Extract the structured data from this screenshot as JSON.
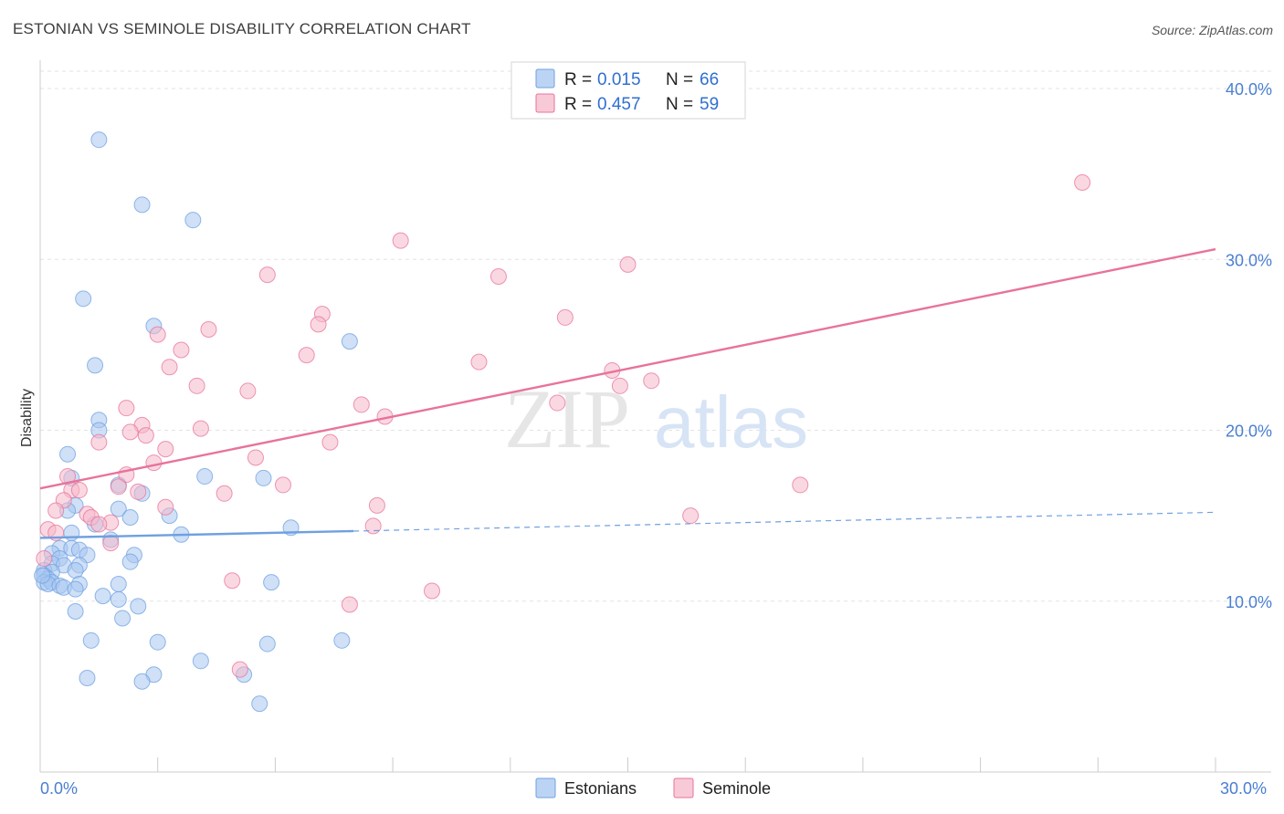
{
  "header": {
    "title": "ESTONIAN VS SEMINOLE DISABILITY CORRELATION CHART",
    "source": "Source: ZipAtlas.com"
  },
  "watermark": {
    "part1": "ZIP",
    "part2": "atlas"
  },
  "legend": {
    "rows": [
      {
        "r_label": "R = ",
        "r_value": "0.015",
        "n_label": "N = ",
        "n_value": "66",
        "color": "#a8c6f0"
      },
      {
        "r_label": "R = ",
        "r_value": "0.457",
        "n_label": "N = ",
        "n_value": "59",
        "color": "#f5b8cb"
      }
    ]
  },
  "bottom_legend": {
    "items": [
      {
        "label": "Estonians",
        "color": "#a8c6f0"
      },
      {
        "label": "Seminole",
        "color": "#f5b8cb"
      }
    ]
  },
  "chart_data": {
    "type": "scatter",
    "title": "ESTONIAN VS SEMINOLE DISABILITY CORRELATION CHART",
    "xlabel": "",
    "ylabel": "Disability",
    "xlim": [
      0,
      30
    ],
    "ylim": [
      0,
      40
    ],
    "x_tick_labels": [
      "0.0%",
      "30.0%"
    ],
    "y_ticks": [
      10,
      20,
      30,
      40
    ],
    "y_tick_labels": [
      "10.0%",
      "20.0%",
      "30.0%",
      "40.0%"
    ],
    "grid": true,
    "legend_position": "top-center",
    "series": [
      {
        "name": "Estonians",
        "color": "#6fa0e0",
        "fill": "#a8c6f0",
        "trend": {
          "x": [
            0,
            8
          ],
          "y": [
            13.7,
            14.1
          ],
          "dashed_extension_to_x": 30,
          "dashed_end_y": 15.2
        },
        "points": [
          [
            1.5,
            37.0
          ],
          [
            2.6,
            33.2
          ],
          [
            3.9,
            32.3
          ],
          [
            1.1,
            27.7
          ],
          [
            2.9,
            26.1
          ],
          [
            1.4,
            23.8
          ],
          [
            7.9,
            25.2
          ],
          [
            1.5,
            20.6
          ],
          [
            1.5,
            20.0
          ],
          [
            0.7,
            18.6
          ],
          [
            4.2,
            17.3
          ],
          [
            5.7,
            17.2
          ],
          [
            0.8,
            17.2
          ],
          [
            2.0,
            16.8
          ],
          [
            2.6,
            16.3
          ],
          [
            0.9,
            15.6
          ],
          [
            0.7,
            15.3
          ],
          [
            2.0,
            15.4
          ],
          [
            3.3,
            15.0
          ],
          [
            2.3,
            14.9
          ],
          [
            1.4,
            14.5
          ],
          [
            6.4,
            14.3
          ],
          [
            0.8,
            14.0
          ],
          [
            3.6,
            13.9
          ],
          [
            1.8,
            13.6
          ],
          [
            0.5,
            13.1
          ],
          [
            0.8,
            13.1
          ],
          [
            1.0,
            13.0
          ],
          [
            0.3,
            12.8
          ],
          [
            1.2,
            12.7
          ],
          [
            2.4,
            12.7
          ],
          [
            0.5,
            12.5
          ],
          [
            0.3,
            12.2
          ],
          [
            0.6,
            12.1
          ],
          [
            1.0,
            12.1
          ],
          [
            2.3,
            12.3
          ],
          [
            0.1,
            11.8
          ],
          [
            0.3,
            11.7
          ],
          [
            0.9,
            11.8
          ],
          [
            0.1,
            11.5
          ],
          [
            0.2,
            11.3
          ],
          [
            0.1,
            11.1
          ],
          [
            0.3,
            11.1
          ],
          [
            0.2,
            11.0
          ],
          [
            0.5,
            10.9
          ],
          [
            0.6,
            10.8
          ],
          [
            1.0,
            11.0
          ],
          [
            2.0,
            11.0
          ],
          [
            5.9,
            11.1
          ],
          [
            0.9,
            10.7
          ],
          [
            1.6,
            10.3
          ],
          [
            2.0,
            10.1
          ],
          [
            2.5,
            9.7
          ],
          [
            0.9,
            9.4
          ],
          [
            2.1,
            9.0
          ],
          [
            1.3,
            7.7
          ],
          [
            3.0,
            7.6
          ],
          [
            5.8,
            7.5
          ],
          [
            7.7,
            7.7
          ],
          [
            4.1,
            6.5
          ],
          [
            1.2,
            5.5
          ],
          [
            2.9,
            5.7
          ],
          [
            2.6,
            5.3
          ],
          [
            5.2,
            5.7
          ],
          [
            5.6,
            4.0
          ],
          [
            0.05,
            11.5
          ]
        ]
      },
      {
        "name": "Seminole",
        "color": "#e8739a",
        "fill": "#f5b8cb",
        "trend": {
          "x": [
            0,
            30
          ],
          "y": [
            16.6,
            30.6
          ]
        },
        "points": [
          [
            26.6,
            34.5
          ],
          [
            9.2,
            31.1
          ],
          [
            15.0,
            29.7
          ],
          [
            5.8,
            29.1
          ],
          [
            11.7,
            29.0
          ],
          [
            7.2,
            26.8
          ],
          [
            13.4,
            26.6
          ],
          [
            7.1,
            26.2
          ],
          [
            4.3,
            25.9
          ],
          [
            3.0,
            25.6
          ],
          [
            3.6,
            24.7
          ],
          [
            6.8,
            24.4
          ],
          [
            11.2,
            24.0
          ],
          [
            3.3,
            23.7
          ],
          [
            14.6,
            23.5
          ],
          [
            15.6,
            22.9
          ],
          [
            14.8,
            22.6
          ],
          [
            4.0,
            22.6
          ],
          [
            5.3,
            22.3
          ],
          [
            13.2,
            21.6
          ],
          [
            8.2,
            21.5
          ],
          [
            2.2,
            21.3
          ],
          [
            8.8,
            20.8
          ],
          [
            2.6,
            20.3
          ],
          [
            4.1,
            20.1
          ],
          [
            2.3,
            19.9
          ],
          [
            2.7,
            19.7
          ],
          [
            1.5,
            19.3
          ],
          [
            7.4,
            19.3
          ],
          [
            3.2,
            18.9
          ],
          [
            5.5,
            18.4
          ],
          [
            2.9,
            18.1
          ],
          [
            2.2,
            17.4
          ],
          [
            0.7,
            17.3
          ],
          [
            19.4,
            16.8
          ],
          [
            6.2,
            16.8
          ],
          [
            2.0,
            16.7
          ],
          [
            0.8,
            16.5
          ],
          [
            1.0,
            16.5
          ],
          [
            2.5,
            16.4
          ],
          [
            4.7,
            16.3
          ],
          [
            0.6,
            15.9
          ],
          [
            8.6,
            15.6
          ],
          [
            3.2,
            15.5
          ],
          [
            0.4,
            15.3
          ],
          [
            1.2,
            15.1
          ],
          [
            1.3,
            14.9
          ],
          [
            16.6,
            15.0
          ],
          [
            1.8,
            14.6
          ],
          [
            1.5,
            14.5
          ],
          [
            8.5,
            14.4
          ],
          [
            0.2,
            14.2
          ],
          [
            0.4,
            14.0
          ],
          [
            1.8,
            13.4
          ],
          [
            0.1,
            12.5
          ],
          [
            4.9,
            11.2
          ],
          [
            10.0,
            10.6
          ],
          [
            7.9,
            9.8
          ],
          [
            5.1,
            6.0
          ]
        ]
      }
    ]
  }
}
